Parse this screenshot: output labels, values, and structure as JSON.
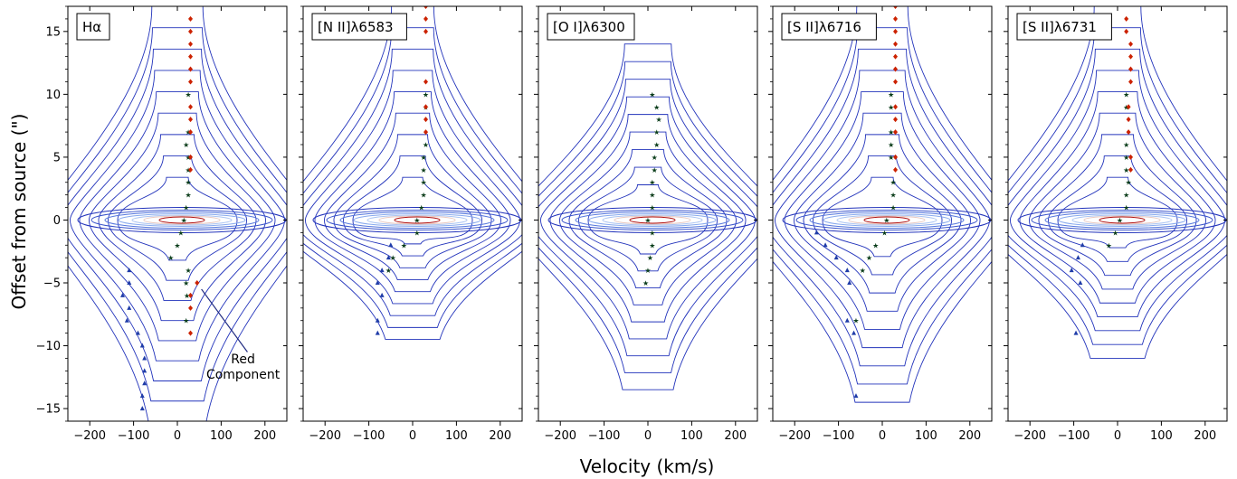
{
  "chart_data": {
    "type": "contour",
    "xlabel": "Velocity (km/s)",
    "ylabel": "Offset from source (\")",
    "xlim": [
      -250,
      250
    ],
    "ylim": [
      -16,
      17
    ],
    "xticks": [
      -200,
      -100,
      0,
      100,
      200
    ],
    "yticks": [
      -15,
      -10,
      -5,
      0,
      5,
      10,
      15
    ],
    "x_tick_labels": [
      "−200",
      "−100",
      "0",
      "100",
      "200"
    ],
    "y_tick_labels": [
      "−15",
      "−10",
      "−5",
      "0",
      "5",
      "10",
      "15"
    ],
    "colors": {
      "contour": "#2233bb",
      "red_marker": "#cc2200",
      "blue_marker": "#1f3ca8",
      "center_marker": "#0a3d1a",
      "peak": "#b01010"
    },
    "panels": [
      {
        "label": "Hα",
        "extent": {
          "top": 17,
          "bottom": -16,
          "width": [
            50,
            140
          ]
        },
        "central_component": [
          [
            20,
            1
          ],
          [
            15,
            0
          ],
          [
            8,
            -1
          ],
          [
            0,
            -2
          ],
          [
            -15,
            -3
          ],
          [
            25,
            -4
          ],
          [
            20,
            -5
          ],
          [
            22,
            -6
          ],
          [
            20,
            -8
          ],
          [
            25,
            5
          ],
          [
            25,
            4
          ],
          [
            25,
            3
          ],
          [
            25,
            2
          ],
          [
            20,
            6
          ],
          [
            25,
            7
          ],
          [
            25,
            10
          ]
        ],
        "red_component": [
          [
            30,
            16
          ],
          [
            30,
            15
          ],
          [
            30,
            14
          ],
          [
            30,
            13
          ],
          [
            30,
            12
          ],
          [
            30,
            11
          ],
          [
            30,
            9
          ],
          [
            30,
            8
          ],
          [
            30,
            7
          ],
          [
            30,
            5
          ],
          [
            30,
            4
          ],
          [
            45,
            -5
          ],
          [
            30,
            -6
          ],
          [
            30,
            -7
          ],
          [
            30,
            -9
          ]
        ],
        "blue_component": [
          [
            -110,
            -4
          ],
          [
            -110,
            -5
          ],
          [
            -125,
            -6
          ],
          [
            -110,
            -7
          ],
          [
            -115,
            -8
          ],
          [
            -90,
            -9
          ],
          [
            -80,
            -10
          ],
          [
            -75,
            -11
          ],
          [
            -75,
            -12
          ],
          [
            -75,
            -13
          ],
          [
            -80,
            -14
          ],
          [
            -80,
            -15
          ]
        ],
        "annotation": {
          "text_lines": [
            "Red",
            "Component"
          ],
          "arrow_from": [
            160,
            -10.5
          ],
          "arrow_to": [
            55,
            -5.5
          ]
        }
      },
      {
        "label": "[N II]λ6583",
        "extent": {
          "top": 17,
          "bottom": -9.5,
          "width": [
            40,
            130
          ]
        },
        "central_component": [
          [
            10,
            -1
          ],
          [
            -20,
            -2
          ],
          [
            -45,
            -3
          ],
          [
            -55,
            -4
          ],
          [
            30,
            10
          ],
          [
            30,
            9
          ],
          [
            30,
            6
          ],
          [
            25,
            5
          ],
          [
            25,
            4
          ],
          [
            25,
            3
          ],
          [
            25,
            2
          ],
          [
            20,
            1
          ],
          [
            10,
            0
          ]
        ],
        "red_component": [
          [
            30,
            17
          ],
          [
            30,
            16
          ],
          [
            30,
            15
          ],
          [
            30,
            11
          ],
          [
            30,
            9
          ],
          [
            30,
            8
          ],
          [
            30,
            7
          ]
        ],
        "blue_component": [
          [
            -50,
            -2
          ],
          [
            -55,
            -3
          ],
          [
            -70,
            -4
          ],
          [
            -80,
            -5
          ],
          [
            -70,
            -6
          ],
          [
            -80,
            -8
          ],
          [
            -80,
            -9
          ]
        ],
        "annotation": null
      },
      {
        "label": "[O I]λ6300",
        "extent": {
          "top": 14,
          "bottom": -13.5,
          "width": [
            45,
            120
          ]
        },
        "central_component": [
          [
            10,
            10
          ],
          [
            20,
            9
          ],
          [
            25,
            8
          ],
          [
            20,
            7
          ],
          [
            20,
            6
          ],
          [
            15,
            5
          ],
          [
            15,
            4
          ],
          [
            10,
            3
          ],
          [
            10,
            2
          ],
          [
            10,
            1
          ],
          [
            0,
            0
          ],
          [
            10,
            -1
          ],
          [
            10,
            -2
          ],
          [
            5,
            -3
          ],
          [
            0,
            -4
          ],
          [
            -5,
            -5
          ]
        ],
        "red_component": [],
        "blue_component": [],
        "annotation": null
      },
      {
        "label": "[S II]λ6716",
        "extent": {
          "top": 17,
          "bottom": -14.5,
          "width": [
            50,
            130
          ]
        },
        "central_component": [
          [
            20,
            10
          ],
          [
            20,
            9
          ],
          [
            20,
            7
          ],
          [
            20,
            6
          ],
          [
            20,
            5
          ],
          [
            25,
            3
          ],
          [
            25,
            2
          ],
          [
            25,
            1
          ],
          [
            10,
            0
          ],
          [
            5,
            -1
          ],
          [
            -15,
            -2
          ],
          [
            -30,
            -3
          ],
          [
            -45,
            -4
          ],
          [
            -60,
            -8
          ]
        ],
        "red_component": [
          [
            30,
            17
          ],
          [
            30,
            16
          ],
          [
            30,
            15
          ],
          [
            30,
            14
          ],
          [
            30,
            13
          ],
          [
            30,
            12
          ],
          [
            30,
            11
          ],
          [
            30,
            9
          ],
          [
            30,
            8
          ],
          [
            30,
            7
          ],
          [
            30,
            5
          ],
          [
            30,
            4
          ]
        ],
        "blue_component": [
          [
            -150,
            -1
          ],
          [
            -130,
            -2
          ],
          [
            -105,
            -3
          ],
          [
            -80,
            -4
          ],
          [
            -75,
            -5
          ],
          [
            -80,
            -8
          ],
          [
            -65,
            -9
          ],
          [
            -60,
            -14
          ]
        ],
        "annotation": null
      },
      {
        "label": "[S II]λ6731",
        "extent": {
          "top": 17,
          "bottom": -11,
          "width": [
            45,
            130
          ]
        },
        "central_component": [
          [
            20,
            10
          ],
          [
            20,
            9
          ],
          [
            20,
            6
          ],
          [
            20,
            5
          ],
          [
            20,
            4
          ],
          [
            25,
            3
          ],
          [
            20,
            2
          ],
          [
            20,
            1
          ],
          [
            5,
            0
          ],
          [
            -5,
            -1
          ],
          [
            -20,
            -2
          ]
        ],
        "red_component": [
          [
            20,
            16
          ],
          [
            20,
            15
          ],
          [
            30,
            14
          ],
          [
            30,
            13
          ],
          [
            30,
            12
          ],
          [
            30,
            11
          ],
          [
            25,
            9
          ],
          [
            25,
            8
          ],
          [
            25,
            7
          ],
          [
            30,
            5
          ],
          [
            30,
            4
          ]
        ],
        "blue_component": [
          [
            -80,
            -2
          ],
          [
            -90,
            -3
          ],
          [
            -105,
            -4
          ],
          [
            -85,
            -5
          ],
          [
            -95,
            -9
          ]
        ],
        "annotation": null
      }
    ]
  }
}
